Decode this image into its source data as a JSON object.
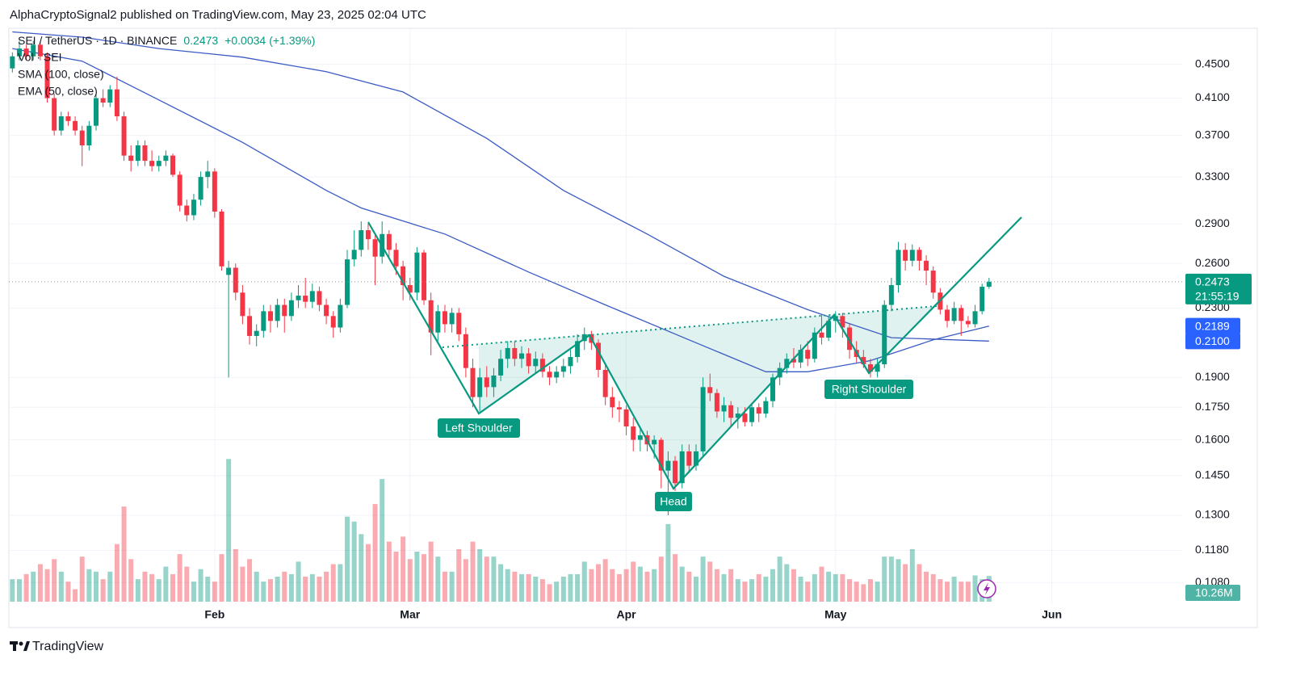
{
  "header": "AlphaCryptoSignal2 published on TradingView.com, May 23, 2025 02:04 UTC",
  "footer": "TradingView",
  "chart_data": {
    "type": "candlestick",
    "symbol": "SEI / TetherUS · 1D · BINANCE",
    "last_price": {
      "value": 0.2473,
      "label": "0.2473"
    },
    "change": {
      "value": 0.0034,
      "label": "+0.0034"
    },
    "change_pct": {
      "value": 1.39,
      "label": "(+1.39%)"
    },
    "countdown": "21:55:19",
    "up_color": "#089981",
    "down_color": "#f23645",
    "log_scale": true,
    "grid": true,
    "xlim": [
      -0.5,
      167.8
    ],
    "xticks": [
      {
        "value": 29,
        "label": "Feb"
      },
      {
        "value": 57,
        "label": "Mar"
      },
      {
        "value": 88,
        "label": "Apr"
      },
      {
        "value": 118,
        "label": "May"
      },
      {
        "value": 149,
        "label": "Jun"
      }
    ],
    "ylim": [
      0.102,
      0.497
    ],
    "yticks": [
      {
        "value": 0.45,
        "label": "0.4500"
      },
      {
        "value": 0.41,
        "label": "0.4100"
      },
      {
        "value": 0.37,
        "label": "0.3700"
      },
      {
        "value": 0.33,
        "label": "0.3300"
      },
      {
        "value": 0.29,
        "label": "0.2900"
      },
      {
        "value": 0.26,
        "label": "0.2600"
      },
      {
        "value": 0.23,
        "label": "0.2300"
      },
      {
        "value": 0.19,
        "label": "0.1900"
      },
      {
        "value": 0.175,
        "label": "0.1750"
      },
      {
        "value": 0.16,
        "label": "0.1600"
      },
      {
        "value": 0.145,
        "label": "0.1450"
      },
      {
        "value": 0.13,
        "label": "0.1300"
      },
      {
        "value": 0.118,
        "label": "0.1180"
      },
      {
        "value": 0.108,
        "label": "0.1080"
      }
    ],
    "x": [
      0,
      1,
      2,
      3,
      4,
      5,
      6,
      7,
      8,
      9,
      10,
      11,
      12,
      13,
      14,
      15,
      16,
      17,
      18,
      19,
      20,
      21,
      22,
      23,
      24,
      25,
      26,
      27,
      28,
      29,
      30,
      31,
      32,
      33,
      34,
      35,
      36,
      37,
      38,
      39,
      40,
      41,
      42,
      43,
      44,
      45,
      46,
      47,
      48,
      49,
      50,
      51,
      52,
      53,
      54,
      55,
      56,
      57,
      58,
      59,
      60,
      61,
      62,
      63,
      64,
      65,
      66,
      67,
      68,
      69,
      70,
      71,
      72,
      73,
      74,
      75,
      76,
      77,
      78,
      79,
      80,
      81,
      82,
      83,
      84,
      85,
      86,
      87,
      88,
      89,
      90,
      91,
      92,
      93,
      94,
      95,
      96,
      97,
      98,
      99,
      100,
      101,
      102,
      103,
      104,
      105,
      106,
      107,
      108,
      109,
      110,
      111,
      112,
      113,
      114,
      115,
      116,
      117,
      118,
      119,
      120,
      121,
      122,
      123,
      124,
      125,
      126,
      127,
      128,
      129,
      130,
      131,
      132,
      133,
      134,
      135,
      136,
      137,
      138,
      139,
      140
    ],
    "ohlc": [
      [
        0.445,
        0.465,
        0.44,
        0.46
      ],
      [
        0.46,
        0.48,
        0.455,
        0.47
      ],
      [
        0.47,
        0.475,
        0.455,
        0.46
      ],
      [
        0.46,
        0.48,
        0.455,
        0.475
      ],
      [
        0.475,
        0.48,
        0.455,
        0.46
      ],
      [
        0.46,
        0.465,
        0.405,
        0.41
      ],
      [
        0.41,
        0.415,
        0.37,
        0.375
      ],
      [
        0.375,
        0.395,
        0.37,
        0.39
      ],
      [
        0.39,
        0.395,
        0.38,
        0.385
      ],
      [
        0.385,
        0.39,
        0.37,
        0.375
      ],
      [
        0.375,
        0.38,
        0.34,
        0.36
      ],
      [
        0.36,
        0.385,
        0.355,
        0.38
      ],
      [
        0.38,
        0.415,
        0.375,
        0.41
      ],
      [
        0.41,
        0.42,
        0.4,
        0.405
      ],
      [
        0.405,
        0.425,
        0.4,
        0.42
      ],
      [
        0.42,
        0.435,
        0.385,
        0.39
      ],
      [
        0.39,
        0.395,
        0.345,
        0.35
      ],
      [
        0.35,
        0.36,
        0.335,
        0.345
      ],
      [
        0.345,
        0.365,
        0.34,
        0.36
      ],
      [
        0.36,
        0.365,
        0.34,
        0.345
      ],
      [
        0.345,
        0.355,
        0.335,
        0.34
      ],
      [
        0.34,
        0.35,
        0.335,
        0.345
      ],
      [
        0.345,
        0.355,
        0.34,
        0.35
      ],
      [
        0.35,
        0.352,
        0.33,
        0.332
      ],
      [
        0.332,
        0.335,
        0.3,
        0.305
      ],
      [
        0.305,
        0.31,
        0.292,
        0.297
      ],
      [
        0.297,
        0.315,
        0.293,
        0.31
      ],
      [
        0.31,
        0.335,
        0.305,
        0.33
      ],
      [
        0.33,
        0.345,
        0.32,
        0.335
      ],
      [
        0.335,
        0.338,
        0.295,
        0.3
      ],
      [
        0.3,
        0.302,
        0.255,
        0.258
      ],
      [
        0.252,
        0.262,
        0.19,
        0.257
      ],
      [
        0.257,
        0.26,
        0.235,
        0.24
      ],
      [
        0.24,
        0.245,
        0.22,
        0.225
      ],
      [
        0.225,
        0.23,
        0.208,
        0.213
      ],
      [
        0.213,
        0.22,
        0.207,
        0.216
      ],
      [
        0.216,
        0.232,
        0.212,
        0.228
      ],
      [
        0.228,
        0.232,
        0.215,
        0.222
      ],
      [
        0.222,
        0.236,
        0.218,
        0.232
      ],
      [
        0.232,
        0.236,
        0.215,
        0.225
      ],
      [
        0.225,
        0.24,
        0.222,
        0.235
      ],
      [
        0.235,
        0.245,
        0.23,
        0.238
      ],
      [
        0.238,
        0.25,
        0.23,
        0.234
      ],
      [
        0.234,
        0.246,
        0.23,
        0.241
      ],
      [
        0.241,
        0.244,
        0.228,
        0.232
      ],
      [
        0.232,
        0.236,
        0.22,
        0.225
      ],
      [
        0.225,
        0.228,
        0.212,
        0.218
      ],
      [
        0.218,
        0.236,
        0.215,
        0.232
      ],
      [
        0.232,
        0.27,
        0.23,
        0.263
      ],
      [
        0.263,
        0.285,
        0.258,
        0.27
      ],
      [
        0.27,
        0.292,
        0.265,
        0.285
      ],
      [
        0.285,
        0.29,
        0.27,
        0.278
      ],
      [
        0.278,
        0.282,
        0.245,
        0.265
      ],
      [
        0.265,
        0.292,
        0.26,
        0.282
      ],
      [
        0.282,
        0.285,
        0.265,
        0.27
      ],
      [
        0.27,
        0.275,
        0.252,
        0.258
      ],
      [
        0.258,
        0.262,
        0.235,
        0.245
      ],
      [
        0.245,
        0.25,
        0.235,
        0.24
      ],
      [
        0.24,
        0.272,
        0.235,
        0.268
      ],
      [
        0.268,
        0.27,
        0.232,
        0.235
      ],
      [
        0.235,
        0.24,
        0.202,
        0.215
      ],
      [
        0.215,
        0.232,
        0.21,
        0.228
      ],
      [
        0.228,
        0.232,
        0.215,
        0.22
      ],
      [
        0.22,
        0.23,
        0.215,
        0.227
      ],
      [
        0.227,
        0.23,
        0.21,
        0.214
      ],
      [
        0.214,
        0.218,
        0.19,
        0.195
      ],
      [
        0.195,
        0.2,
        0.175,
        0.18
      ],
      [
        0.18,
        0.195,
        0.173,
        0.19
      ],
      [
        0.19,
        0.196,
        0.18,
        0.185
      ],
      [
        0.185,
        0.195,
        0.18,
        0.191
      ],
      [
        0.191,
        0.205,
        0.188,
        0.2
      ],
      [
        0.2,
        0.21,
        0.195,
        0.206
      ],
      [
        0.206,
        0.21,
        0.196,
        0.2
      ],
      [
        0.2,
        0.207,
        0.195,
        0.203
      ],
      [
        0.203,
        0.206,
        0.192,
        0.196
      ],
      [
        0.196,
        0.204,
        0.192,
        0.2
      ],
      [
        0.2,
        0.203,
        0.19,
        0.193
      ],
      [
        0.193,
        0.196,
        0.186,
        0.19
      ],
      [
        0.19,
        0.196,
        0.187,
        0.193
      ],
      [
        0.193,
        0.2,
        0.19,
        0.196
      ],
      [
        0.196,
        0.205,
        0.192,
        0.201
      ],
      [
        0.201,
        0.214,
        0.198,
        0.21
      ],
      [
        0.21,
        0.218,
        0.205,
        0.214
      ],
      [
        0.214,
        0.216,
        0.205,
        0.209
      ],
      [
        0.209,
        0.211,
        0.19,
        0.194
      ],
      [
        0.194,
        0.197,
        0.176,
        0.18
      ],
      [
        0.18,
        0.185,
        0.17,
        0.175
      ],
      [
        0.175,
        0.178,
        0.168,
        0.174
      ],
      [
        0.174,
        0.176,
        0.162,
        0.166
      ],
      [
        0.166,
        0.17,
        0.155,
        0.16
      ],
      [
        0.16,
        0.165,
        0.155,
        0.162
      ],
      [
        0.162,
        0.164,
        0.155,
        0.158
      ],
      [
        0.158,
        0.162,
        0.152,
        0.16
      ],
      [
        0.16,
        0.161,
        0.14,
        0.147
      ],
      [
        0.147,
        0.155,
        0.13,
        0.151
      ],
      [
        0.151,
        0.153,
        0.139,
        0.142
      ],
      [
        0.142,
        0.158,
        0.14,
        0.155
      ],
      [
        0.155,
        0.158,
        0.146,
        0.149
      ],
      [
        0.149,
        0.158,
        0.147,
        0.155
      ],
      [
        0.155,
        0.19,
        0.153,
        0.185
      ],
      [
        0.185,
        0.192,
        0.178,
        0.182
      ],
      [
        0.182,
        0.184,
        0.17,
        0.173
      ],
      [
        0.173,
        0.18,
        0.168,
        0.176
      ],
      [
        0.176,
        0.178,
        0.166,
        0.17
      ],
      [
        0.17,
        0.175,
        0.165,
        0.172
      ],
      [
        0.172,
        0.175,
        0.166,
        0.168
      ],
      [
        0.168,
        0.177,
        0.166,
        0.175
      ],
      [
        0.175,
        0.177,
        0.168,
        0.172
      ],
      [
        0.172,
        0.18,
        0.17,
        0.178
      ],
      [
        0.178,
        0.192,
        0.175,
        0.19
      ],
      [
        0.19,
        0.198,
        0.186,
        0.195
      ],
      [
        0.195,
        0.203,
        0.192,
        0.2
      ],
      [
        0.2,
        0.206,
        0.195,
        0.198
      ],
      [
        0.198,
        0.208,
        0.195,
        0.205
      ],
      [
        0.205,
        0.21,
        0.196,
        0.2
      ],
      [
        0.2,
        0.218,
        0.198,
        0.215
      ],
      [
        0.215,
        0.226,
        0.208,
        0.212
      ],
      [
        0.212,
        0.225,
        0.21,
        0.222
      ],
      [
        0.222,
        0.228,
        0.215,
        0.225
      ],
      [
        0.225,
        0.227,
        0.212,
        0.218
      ],
      [
        0.218,
        0.22,
        0.2,
        0.205
      ],
      [
        0.205,
        0.21,
        0.198,
        0.201
      ],
      [
        0.201,
        0.205,
        0.195,
        0.197
      ],
      [
        0.197,
        0.2,
        0.19,
        0.193
      ],
      [
        0.193,
        0.2,
        0.19,
        0.197
      ],
      [
        0.197,
        0.235,
        0.195,
        0.232
      ],
      [
        0.232,
        0.25,
        0.228,
        0.245
      ],
      [
        0.245,
        0.276,
        0.24,
        0.27
      ],
      [
        0.27,
        0.275,
        0.255,
        0.262
      ],
      [
        0.262,
        0.274,
        0.258,
        0.27
      ],
      [
        0.27,
        0.272,
        0.255,
        0.262
      ],
      [
        0.262,
        0.266,
        0.245,
        0.255
      ],
      [
        0.255,
        0.258,
        0.236,
        0.24
      ],
      [
        0.24,
        0.243,
        0.226,
        0.229
      ],
      [
        0.229,
        0.232,
        0.218,
        0.222
      ],
      [
        0.222,
        0.234,
        0.22,
        0.23
      ],
      [
        0.23,
        0.232,
        0.213,
        0.222
      ],
      [
        0.222,
        0.225,
        0.218,
        0.22
      ],
      [
        0.22,
        0.232,
        0.218,
        0.228
      ],
      [
        0.228,
        0.246,
        0.226,
        0.2439
      ],
      [
        0.2439,
        0.25,
        0.2425,
        0.2473
      ]
    ],
    "volume": {
      "name": "Vol · SEI",
      "up_color": "rgba(8,153,129,0.42)",
      "down_color": "rgba(242,54,69,0.42)",
      "tag_color": "#4fb3a5",
      "values": [
        9,
        9,
        11,
        12,
        15,
        13,
        17,
        12,
        8,
        5,
        18,
        13,
        12,
        9,
        12,
        23,
        38,
        17,
        9,
        12,
        11,
        9,
        14,
        11,
        19,
        14,
        8,
        13,
        10,
        8,
        19,
        57,
        21,
        14,
        17,
        12,
        8,
        9,
        10,
        12,
        11,
        16,
        10,
        11,
        10,
        12,
        15,
        15,
        34,
        32,
        27,
        23,
        39,
        49,
        24,
        20,
        26,
        17,
        20,
        19,
        24,
        18,
        12,
        12,
        21,
        17,
        24,
        21,
        18,
        18,
        15,
        13,
        12,
        11,
        11,
        10,
        9,
        7,
        8,
        10,
        11,
        11,
        16,
        13,
        15,
        17,
        13,
        11,
        13,
        16,
        14,
        12,
        13,
        18,
        31,
        19,
        14,
        12,
        10,
        18,
        16,
        13,
        11,
        13,
        9,
        8,
        9,
        11,
        10,
        13,
        18,
        15,
        13,
        10,
        8,
        11,
        14,
        12,
        11,
        11,
        9,
        8,
        7,
        9,
        8,
        18,
        18,
        17,
        15,
        21,
        15,
        12,
        11,
        9,
        8,
        10,
        8,
        8,
        10.5,
        9,
        10.26
      ],
      "last_label": {
        "value": 10.26,
        "label": "10.26M"
      }
    },
    "series": [
      {
        "name": "SMA (100, close)",
        "color": "#3b5bc4",
        "tag_color": "#2962ff",
        "x": [
          0,
          10,
          21,
          33,
          45,
          56,
          68,
          79,
          91,
          102,
          114,
          126,
          140
        ],
        "values": [
          0.492,
          0.485,
          0.47,
          0.459,
          0.441,
          0.417,
          0.367,
          0.318,
          0.282,
          0.251,
          0.229,
          0.212,
          0.21
        ],
        "last_label": {
          "value": 0.21,
          "label": "0.2100"
        }
      },
      {
        "name": "EMA (50, close)",
        "color": "#3b5bc4",
        "tag_color": "#2962ff",
        "x": [
          0,
          10,
          21,
          33,
          45,
          50,
          62,
          74,
          85,
          97,
          108,
          114,
          123,
          132,
          140
        ],
        "values": [
          0.47,
          0.454,
          0.408,
          0.363,
          0.318,
          0.303,
          0.282,
          0.254,
          0.232,
          0.2107,
          0.193,
          0.193,
          0.199,
          0.2107,
          0.2189
        ],
        "last_label": {
          "value": 0.2189,
          "label": "0.2189"
        }
      }
    ],
    "annotations": [
      "Left Shoulder",
      "Head",
      "Right Shoulder"
    ]
  }
}
